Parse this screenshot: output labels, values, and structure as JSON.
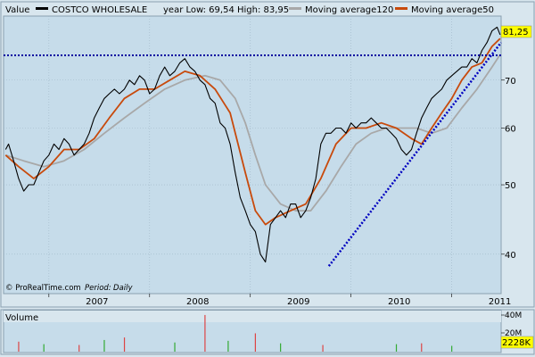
{
  "colors": {
    "background": "#d8e6ee",
    "plot_bg": "#c6dcea",
    "price": "#000000",
    "ma50": "#c84a0c",
    "ma120": "#a8a8a8",
    "resistance_line": "#0000a0",
    "support_line": "#0000c0",
    "badge": "#ffff00",
    "vol_up": "#33aa33",
    "vol_down": "#dd4444"
  },
  "header": {
    "value_label": "Value",
    "series_name": "COSTCO WHOLESALE",
    "stats": "year Low: 69,54 High: 83,95",
    "legend_ma120": "Moving average120",
    "legend_ma50": "Moving average50"
  },
  "footer": {
    "credit": "© ProRealTime.com",
    "period_label": "Period:",
    "period_value": "Daily"
  },
  "price_badge": "81,25",
  "volume_badge": "2228K",
  "volume_panel": {
    "title": "Volume",
    "ticks": [
      "40M",
      "20M"
    ]
  },
  "chart_data": {
    "type": "line",
    "scale": "log",
    "ylim": [
      37,
      86
    ],
    "xlim": [
      2006.55,
      2011.49
    ],
    "y_ticks": [
      40,
      50,
      60,
      70
    ],
    "x_ticks": [
      {
        "label": "2007",
        "value": 2007.0
      },
      {
        "label": "2008",
        "value": 2008.0
      },
      {
        "label": "2009",
        "value": 2009.0
      },
      {
        "label": "2010",
        "value": 2010.0
      },
      {
        "label": "2011",
        "value": 2011.0
      }
    ],
    "last_value": 81.25,
    "grid": true,
    "series": [
      {
        "name": "COSTCO WHOLESALE",
        "style": "price",
        "x": [
          2006.57,
          2006.6,
          2006.65,
          2006.7,
          2006.75,
          2006.8,
          2006.85,
          2006.9,
          2006.95,
          2007.0,
          2007.05,
          2007.1,
          2007.15,
          2007.2,
          2007.25,
          2007.3,
          2007.35,
          2007.4,
          2007.45,
          2007.5,
          2007.55,
          2007.6,
          2007.65,
          2007.7,
          2007.75,
          2007.8,
          2007.85,
          2007.9,
          2007.95,
          2008.0,
          2008.05,
          2008.1,
          2008.15,
          2008.2,
          2008.25,
          2008.3,
          2008.35,
          2008.4,
          2008.45,
          2008.5,
          2008.55,
          2008.6,
          2008.65,
          2008.7,
          2008.75,
          2008.8,
          2008.85,
          2008.9,
          2008.95,
          2009.0,
          2009.05,
          2009.1,
          2009.15,
          2009.2,
          2009.25,
          2009.3,
          2009.35,
          2009.4,
          2009.45,
          2009.5,
          2009.55,
          2009.6,
          2009.65,
          2009.7,
          2009.75,
          2009.8,
          2009.85,
          2009.9,
          2009.95,
          2010.0,
          2010.05,
          2010.1,
          2010.15,
          2010.2,
          2010.25,
          2010.3,
          2010.35,
          2010.4,
          2010.45,
          2010.5,
          2010.55,
          2010.6,
          2010.65,
          2010.7,
          2010.75,
          2010.8,
          2010.85,
          2010.9,
          2010.95,
          2011.0,
          2011.05,
          2011.1,
          2011.15,
          2011.2,
          2011.25,
          2011.3,
          2011.35,
          2011.4,
          2011.45,
          2011.48
        ],
        "values": [
          56,
          57,
          54,
          51,
          49,
          50,
          50,
          52,
          54,
          55,
          57,
          56,
          58,
          57,
          55,
          56,
          57,
          59,
          62,
          64,
          66,
          67,
          68,
          67,
          68,
          70,
          69,
          71,
          70,
          67,
          68,
          71,
          73,
          71,
          72,
          74,
          75,
          73,
          72,
          70,
          69,
          66,
          65,
          61,
          60,
          57,
          52,
          48,
          46,
          44,
          43,
          40,
          39,
          44,
          45,
          46,
          45,
          47,
          47,
          45,
          46,
          48,
          51,
          57,
          59,
          59,
          60,
          60,
          59,
          61,
          60,
          61,
          61,
          62,
          61,
          60,
          60,
          59,
          58,
          56,
          55,
          56,
          59,
          62,
          64,
          66,
          67,
          68,
          70,
          71,
          72,
          73,
          73,
          75,
          74,
          77,
          79,
          82,
          83,
          81
        ]
      },
      {
        "name": "Moving average50",
        "style": "ma50",
        "x": [
          2006.57,
          2006.7,
          2006.85,
          2007.0,
          2007.15,
          2007.3,
          2007.45,
          2007.6,
          2007.75,
          2007.9,
          2008.05,
          2008.2,
          2008.35,
          2008.5,
          2008.65,
          2008.8,
          2008.95,
          2009.05,
          2009.15,
          2009.25,
          2009.4,
          2009.55,
          2009.7,
          2009.85,
          2010.0,
          2010.15,
          2010.3,
          2010.45,
          2010.6,
          2010.7,
          2010.8,
          2010.9,
          2011.0,
          2011.1,
          2011.2,
          2011.3,
          2011.4,
          2011.48
        ],
        "values": [
          55,
          53,
          51,
          53,
          56,
          56,
          58,
          62,
          66,
          68,
          68,
          70,
          72,
          71,
          68,
          63,
          52,
          46,
          44,
          45,
          46,
          47,
          51,
          57,
          60,
          60,
          61,
          60,
          58,
          57,
          60,
          63,
          66,
          70,
          73,
          74,
          78,
          80
        ]
      },
      {
        "name": "Moving average120",
        "style": "ma120",
        "x": [
          2006.57,
          2006.75,
          2006.95,
          2007.15,
          2007.35,
          2007.55,
          2007.75,
          2007.95,
          2008.15,
          2008.35,
          2008.55,
          2008.7,
          2008.85,
          2008.95,
          2009.05,
          2009.15,
          2009.3,
          2009.45,
          2009.6,
          2009.75,
          2009.9,
          2010.05,
          2010.2,
          2010.35,
          2010.5,
          2010.65,
          2010.8,
          2010.95,
          2011.1,
          2011.25,
          2011.4,
          2011.48
        ],
        "values": [
          55,
          54,
          53,
          54,
          56,
          59,
          62,
          65,
          68,
          70,
          71,
          70,
          66,
          61,
          55,
          50,
          47,
          46,
          46,
          49,
          53,
          57,
          59,
          60,
          60,
          60,
          59,
          60,
          64,
          68,
          73,
          76
        ]
      },
      {
        "name": "",
        "style": "resistance",
        "x": [
          2006.55,
          2011.49
        ],
        "values": [
          75.8,
          75.8
        ]
      },
      {
        "name": "",
        "style": "support",
        "x": [
          2009.78,
          2011.49
        ],
        "values": [
          38.5,
          79
        ]
      }
    ],
    "volume": {
      "ylim": [
        0,
        45
      ],
      "unit": "M",
      "spikes": [
        {
          "x": 2006.7,
          "value": 12
        },
        {
          "x": 2006.95,
          "value": 9
        },
        {
          "x": 2007.3,
          "value": 8
        },
        {
          "x": 2007.55,
          "value": 14
        },
        {
          "x": 2007.75,
          "value": 17
        },
        {
          "x": 2008.25,
          "value": 11
        },
        {
          "x": 2008.55,
          "value": 44
        },
        {
          "x": 2008.78,
          "value": 13
        },
        {
          "x": 2009.05,
          "value": 22
        },
        {
          "x": 2009.3,
          "value": 10
        },
        {
          "x": 2009.72,
          "value": 8
        },
        {
          "x": 2010.45,
          "value": 9
        },
        {
          "x": 2010.7,
          "value": 10
        },
        {
          "x": 2011.0,
          "value": 7
        }
      ]
    }
  }
}
